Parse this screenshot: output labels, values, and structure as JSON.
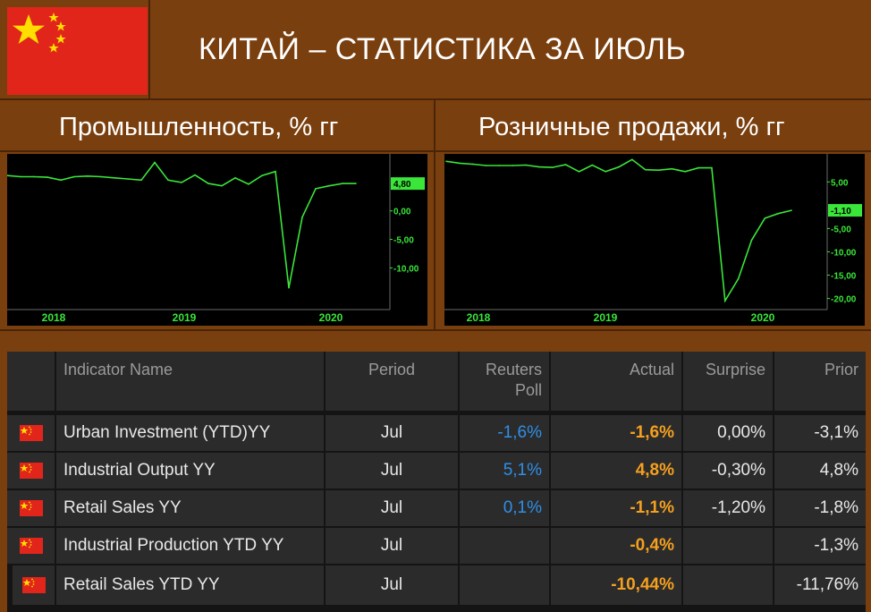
{
  "header": {
    "title": "КИТАЙ – СТАТИСТИКА ЗА ИЮЛЬ",
    "flag_icon": "china-flag-icon",
    "flag_color": "#e1251b",
    "star_color": "#ffde00"
  },
  "chart_data": [
    {
      "type": "line",
      "title": "Промышленность, % гг",
      "x_tick_labels": [
        "2018",
        "2019",
        "2020"
      ],
      "y_tick_labels": [
        "0,00",
        "-5,00",
        "-10,00"
      ],
      "last_value_label": "4,80",
      "ylim": [
        -17,
        10
      ],
      "line_color": "#39e639",
      "series": [
        {
          "values": [
            6.2,
            6.0,
            6.0,
            5.9,
            5.4,
            6.0,
            6.1,
            6.0,
            5.8,
            5.6,
            5.4,
            8.5,
            5.4,
            5.0,
            6.3,
            4.8,
            4.4,
            5.8,
            4.7,
            6.2,
            6.9,
            -13.5,
            -1.1,
            3.9,
            4.4,
            4.8,
            4.8
          ]
        }
      ]
    },
    {
      "type": "line",
      "title": "Розничные продажи, % гг",
      "x_tick_labels": [
        "2018",
        "2019",
        "2020"
      ],
      "y_tick_labels": [
        "5,00",
        "-5,00",
        "-10,00",
        "-15,00",
        "-20,00"
      ],
      "last_value_label": "-1,10",
      "ylim": [
        -22,
        11
      ],
      "line_color": "#39e639",
      "series": [
        {
          "values": [
            9.4,
            9.0,
            8.8,
            8.5,
            8.5,
            8.5,
            8.6,
            8.2,
            8.1,
            8.7,
            7.2,
            8.6,
            7.2,
            8.2,
            9.8,
            7.6,
            7.5,
            7.8,
            7.2,
            8.0,
            8.0,
            -20.5,
            -15.8,
            -7.5,
            -2.8,
            -1.8,
            -1.1
          ]
        }
      ]
    }
  ],
  "table": {
    "headers": {
      "indicator": "Indicator Name",
      "period": "Period",
      "poll_line1": "Reuters",
      "poll_line2": "Poll",
      "actual": "Actual",
      "surprise": "Surprise",
      "prior": "Prior"
    },
    "rows": [
      {
        "name": "Urban Investment (YTD)YY",
        "period": "Jul",
        "poll": "-1,6%",
        "actual": "-1,6%",
        "surprise": "0,00%",
        "prior": "-3,1%"
      },
      {
        "name": "Industrial Output YY",
        "period": "Jul",
        "poll": "5,1%",
        "actual": "4,8%",
        "surprise": "-0,30%",
        "prior": "4,8%"
      },
      {
        "name": "Retail Sales YY",
        "period": "Jul",
        "poll": "0,1%",
        "actual": "-1,1%",
        "surprise": "-1,20%",
        "prior": "-1,8%"
      },
      {
        "name": "Industrial Production YTD YY",
        "period": "Jul",
        "poll": "",
        "actual": "-0,4%",
        "surprise": "",
        "prior": "-1,3%"
      },
      {
        "name": "Retail Sales YTD YY",
        "period": "Jul",
        "poll": "",
        "actual": "-10,44%",
        "surprise": "",
        "prior": "-11,76%"
      }
    ]
  }
}
